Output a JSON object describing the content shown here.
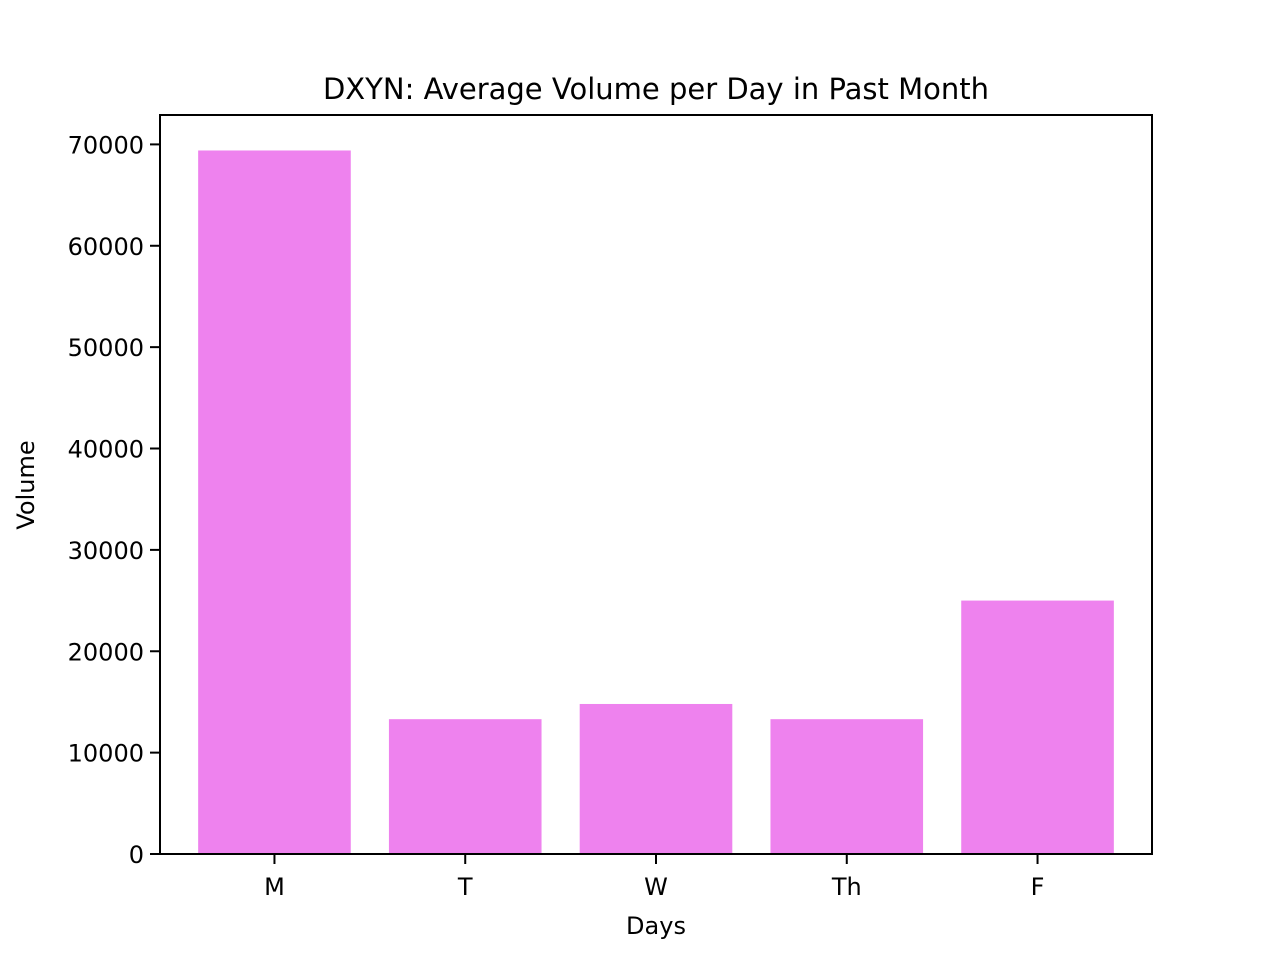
{
  "chart_data": {
    "type": "bar",
    "title": "DXYN: Average Volume per Day in Past Month",
    "xlabel": "Days",
    "ylabel": "Volume",
    "categories": [
      "M",
      "T",
      "W",
      "Th",
      "F"
    ],
    "values": [
      69400,
      13300,
      14800,
      13300,
      25000
    ],
    "ylim": [
      0,
      72900
    ],
    "yticks": [
      0,
      10000,
      20000,
      30000,
      40000,
      50000,
      60000,
      70000
    ],
    "bar_color": "#ee82ee",
    "grid": false,
    "legend": "none"
  }
}
